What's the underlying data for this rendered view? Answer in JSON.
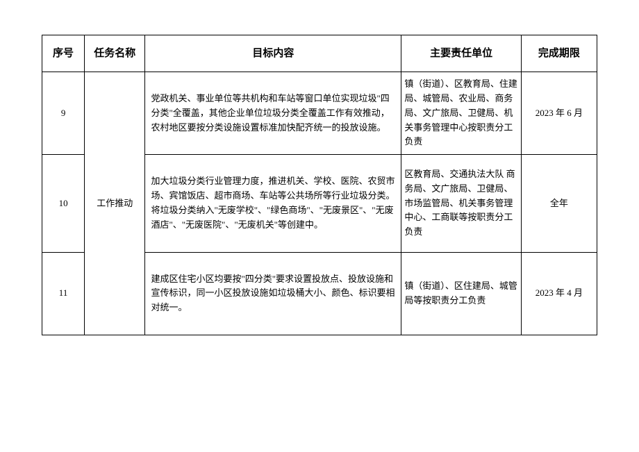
{
  "headers": {
    "seq": "序号",
    "task": "任务名称",
    "target": "目标内容",
    "responsibility": "主要责任单位",
    "deadline": "完成期限"
  },
  "task_name": "工作推动",
  "rows": [
    {
      "seq": "9",
      "target": "党政机关、事业单位等共机构和车站等窗口单位实现垃圾\"四分类\"全覆盖，其他企业单位垃圾分类全覆盖工作有效推动，农村地区要按分类设施设置标准加快配齐统一的投放设施。",
      "responsibility": "镇（街道）、区教育局、住建局、城管局、农业局、商务局、文广旅局、卫健局、机关事务管理中心按职责分工负责",
      "deadline": "2023 年 6 月"
    },
    {
      "seq": "10",
      "target": "加大垃圾分类行业管理力度，推进机关、学校、医院、农贸市场、宾馆饭店、超市商场、车站等公共场所等行业垃圾分类。将垃圾分类纳入\"无废学校\"、\"绿色商场\"、\"无废景区\"、\"无废酒店\"、\"无废医院\"、\"无废机关\"等创建中。",
      "responsibility": "区教育局、交通执法大队 商务局、文广旅局、卫健局、市场监管局、机关事务管理中心、工商联等按职责分工负责",
      "deadline": "全年"
    },
    {
      "seq": "11",
      "target": "建成区住宅小区均要按\"四分类\"要求设置投放点、投放设施和宣传标识，同一小区投放设施如垃圾桶大小、颜色、标识要相对统一。",
      "responsibility": "镇（街道）、区住建局、城管局等按职责分工负责",
      "deadline": "2023 年 4 月"
    }
  ],
  "colors": {
    "border": "#000000",
    "background": "#ffffff",
    "text": "#000000"
  },
  "font": {
    "header_size": 15,
    "body_size": 13,
    "family": "SimSun"
  }
}
